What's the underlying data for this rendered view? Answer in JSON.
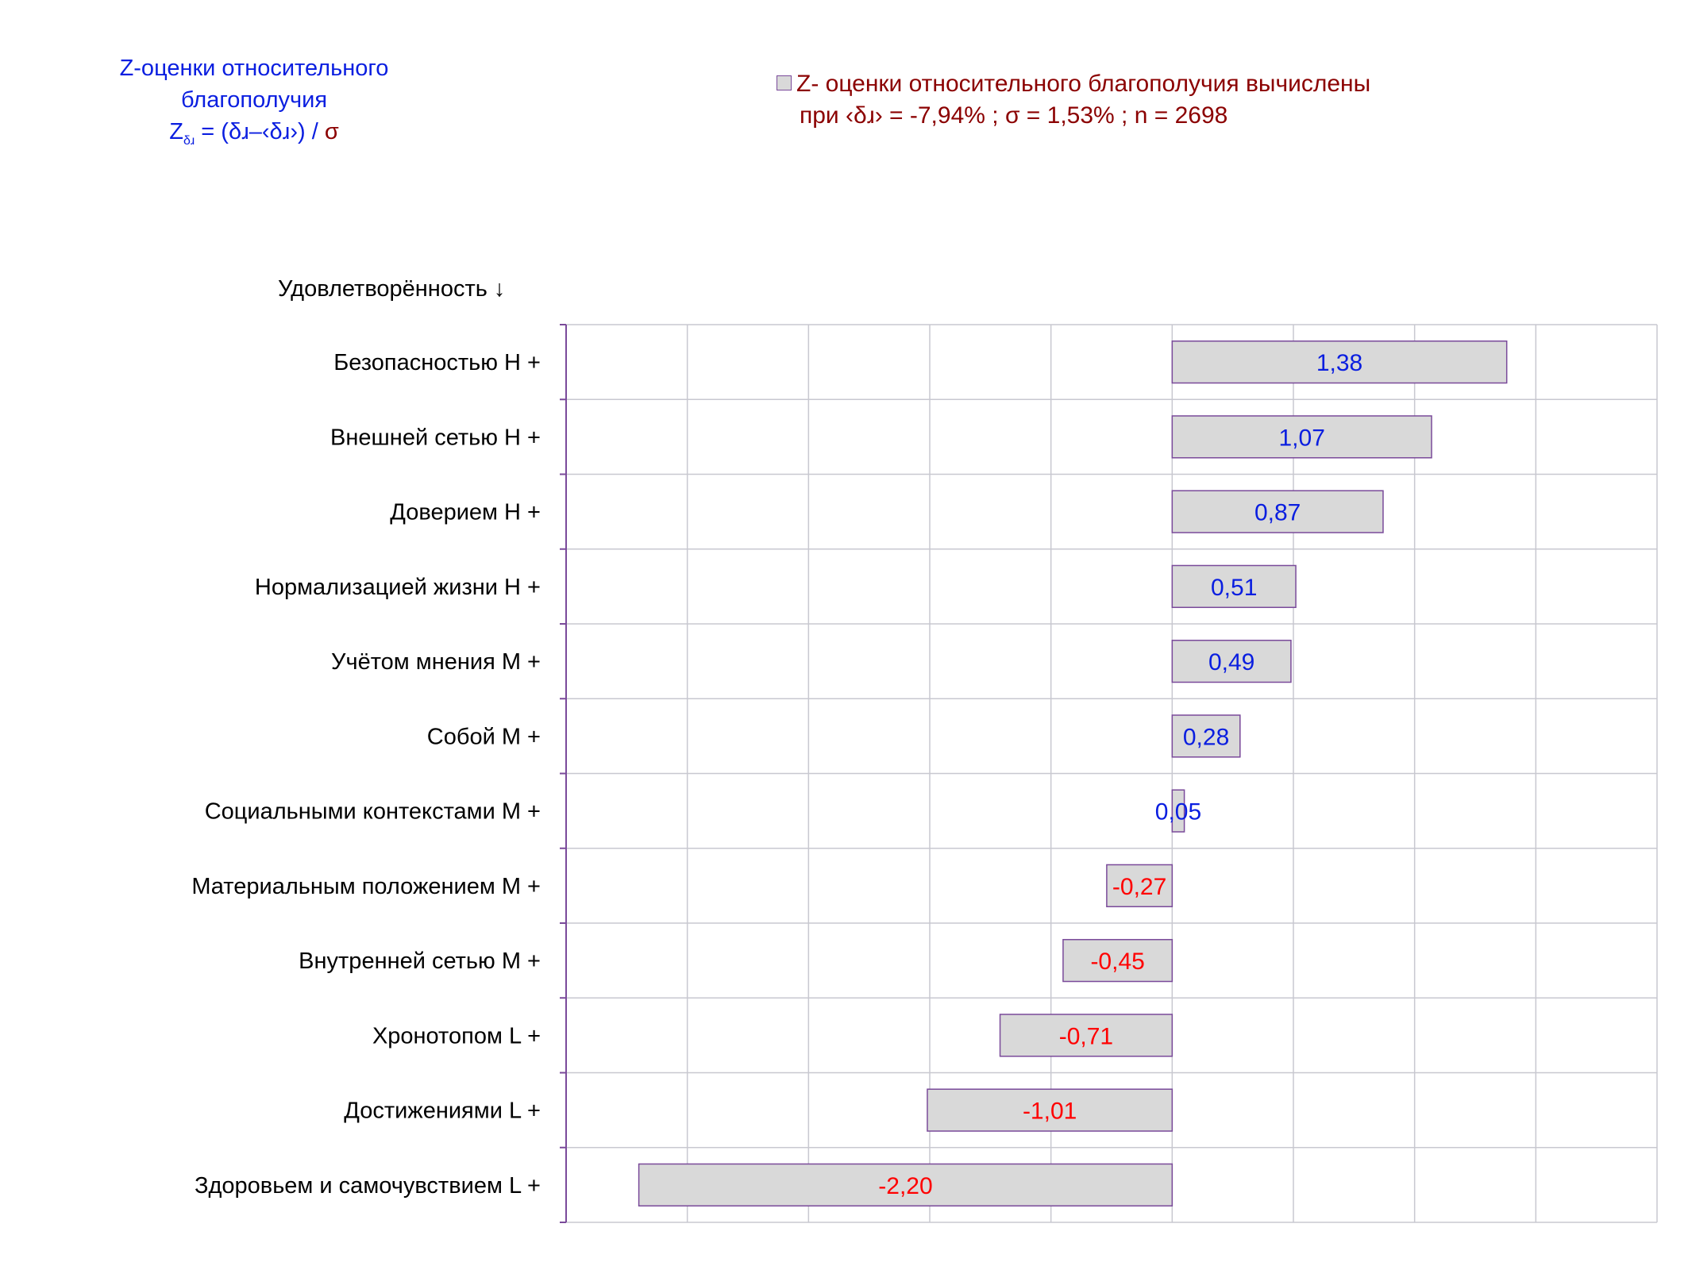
{
  "title": {
    "line1": "Z-оценки  относительного",
    "line2": "благополучия",
    "formula_z": "Z",
    "formula_sub": "δɹ",
    "formula_main": " = (δɹ–‹δɹ›)  / ",
    "formula_sigma": "σ"
  },
  "legend": {
    "line1": "Z- оценки относительного благополучия вычислены",
    "line2": "при ‹δɹ› = -7,94% ; σ = 1,53% ; n = 2698"
  },
  "axis_title": "Удовлетворённость ↓",
  "colors": {
    "positive_label": "#0a1ee0",
    "negative_label": "#ff0000",
    "bar_fill": "#d9d9d9",
    "bar_stroke": "#7a4a9a",
    "grid": "#c8c8d0"
  },
  "chart_data": {
    "type": "bar",
    "orientation": "horizontal",
    "categories": [
      "Безопасностью  Н +",
      "Внешней сетью  Н +",
      "Доверием  Н +",
      "Нормализацией жизни  Н +",
      "Учётом мнения  М +",
      "Собой  М +",
      "Социальными контекстами  М +",
      "Материальным положением  М +",
      "Внутренней сетью  М +",
      "Хронотопом  L +",
      "Достижениями  L +",
      "Здоровьем и самочувствием  L +"
    ],
    "values": [
      1.38,
      1.07,
      0.87,
      0.51,
      0.49,
      0.28,
      0.05,
      -0.27,
      -0.45,
      -0.71,
      -1.01,
      -2.2
    ],
    "value_labels": [
      "1,38",
      "1,07",
      "0,87",
      "0,51",
      "0,49",
      "0,28",
      "0,05",
      "-0,27",
      "-0,45",
      "-0,71",
      "-1,01",
      "-2,20"
    ],
    "xlim": [
      -2.5,
      2.0
    ],
    "grid": true,
    "legend_position": "top-right"
  }
}
